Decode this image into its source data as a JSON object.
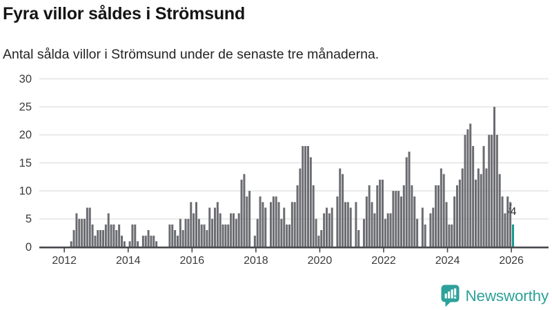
{
  "header": {
    "title": "Fyra villor såldes i Strömsund",
    "subtitle": "Antal sålda villor i Strömsund under de senaste tre månaderna."
  },
  "footer": {
    "brand_name": "Newsworthy"
  },
  "colors": {
    "title": "#141414",
    "subtitle": "#232323",
    "bar": "#6b6c71",
    "highlight": "#14998f",
    "grid": "#e9e9e9",
    "axis": "#47484c",
    "axis_text": "#3a3a3a",
    "annotation_text": "#2b2b2b",
    "brand": "#2da19a"
  },
  "chart_data": {
    "type": "bar",
    "title": "Fyra villor såldes i Strömsund",
    "subtitle": "Antal sålda villor i Strömsund under de senaste tre månaderna.",
    "frequency": "monthly",
    "x_start": "2012-01",
    "x_end": "2026-01",
    "xlabel": "",
    "ylabel": "",
    "ylim": [
      0,
      30
    ],
    "grid": "horizontal",
    "y_ticks": [
      0,
      5,
      10,
      15,
      20,
      25,
      30
    ],
    "x_ticks": [
      2012,
      2014,
      2016,
      2018,
      2020,
      2022,
      2024,
      2026
    ],
    "values": [
      0,
      0,
      1,
      3,
      6,
      5,
      5,
      5,
      7,
      7,
      4,
      2,
      3,
      3,
      3,
      4,
      6,
      4,
      4,
      3,
      4,
      2,
      1,
      0,
      1,
      4,
      4,
      1,
      0,
      2,
      2,
      3,
      2,
      2,
      1,
      0,
      0,
      0,
      0,
      4,
      4,
      3,
      2,
      5,
      3,
      5,
      5,
      8,
      6,
      8,
      5,
      4,
      4,
      3,
      7,
      5,
      7,
      8,
      6,
      4,
      4,
      4,
      6,
      6,
      5,
      6,
      12,
      13,
      9,
      10,
      0,
      2,
      5,
      9,
      8,
      7,
      0,
      8,
      9,
      9,
      8,
      5,
      7,
      4,
      4,
      8,
      8,
      11,
      14,
      18,
      18,
      18,
      16,
      11,
      5,
      2,
      3,
      6,
      7,
      6,
      7,
      0,
      9,
      14,
      13,
      8,
      8,
      7,
      0,
      8,
      3,
      0,
      5,
      9,
      11,
      8,
      6,
      11,
      12,
      12,
      5,
      6,
      6,
      10,
      10,
      10,
      9,
      11,
      16,
      17,
      11,
      9,
      5,
      0,
      7,
      4,
      0,
      6,
      7,
      11,
      11,
      14,
      13,
      8,
      4,
      4,
      9,
      11,
      12,
      14,
      20,
      21,
      22,
      18,
      12,
      14,
      13,
      18,
      14,
      20,
      20,
      25,
      20,
      13,
      9,
      6,
      9,
      8,
      4
    ],
    "highlight_index": 168,
    "highlight_value_label": "4",
    "legend": "none"
  }
}
